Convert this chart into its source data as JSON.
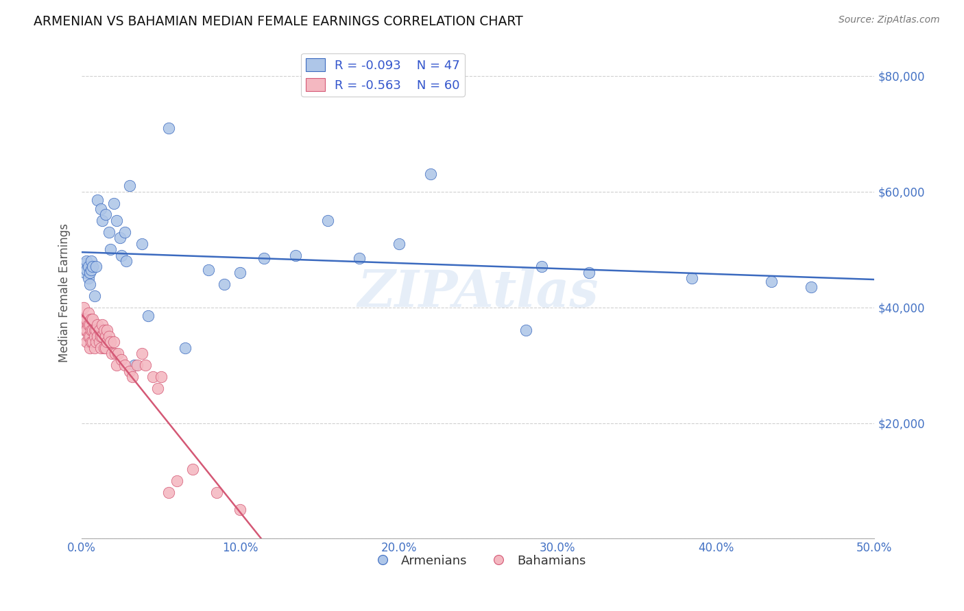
{
  "title": "ARMENIAN VS BAHAMIAN MEDIAN FEMALE EARNINGS CORRELATION CHART",
  "source": "Source: ZipAtlas.com",
  "ylabel": "Median Female Earnings",
  "xlim": [
    0,
    0.5
  ],
  "ylim": [
    0,
    85000
  ],
  "yticks": [
    0,
    20000,
    40000,
    60000,
    80000
  ],
  "ytick_labels": [
    "",
    "$20,000",
    "$40,000",
    "$60,000",
    "$80,000"
  ],
  "xticks": [
    0.0,
    0.1,
    0.2,
    0.3,
    0.4,
    0.5
  ],
  "xtick_labels": [
    "0.0%",
    "10.0%",
    "20.0%",
    "30.0%",
    "40.0%",
    "50.0%"
  ],
  "background_color": "#ffffff",
  "grid_color": "#d0d0d0",
  "watermark": "ZIPAtlas",
  "armenian_color": "#aec6e8",
  "bahamian_color": "#f4b8c1",
  "armenian_line_color": "#3b6abf",
  "bahamian_line_color": "#d45875",
  "legend_R_armenian": "-0.093",
  "legend_N_armenian": "47",
  "legend_R_bahamian": "-0.563",
  "legend_N_bahamian": "60",
  "armenian_x": [
    0.001,
    0.002,
    0.002,
    0.003,
    0.003,
    0.004,
    0.004,
    0.005,
    0.005,
    0.006,
    0.006,
    0.007,
    0.008,
    0.009,
    0.01,
    0.012,
    0.013,
    0.015,
    0.017,
    0.018,
    0.02,
    0.022,
    0.024,
    0.025,
    0.027,
    0.028,
    0.03,
    0.033,
    0.038,
    0.042,
    0.055,
    0.065,
    0.08,
    0.09,
    0.1,
    0.115,
    0.135,
    0.155,
    0.175,
    0.2,
    0.22,
    0.28,
    0.32,
    0.385,
    0.435,
    0.46,
    0.29
  ],
  "armenian_y": [
    47000,
    47500,
    46000,
    48000,
    46500,
    45000,
    47000,
    44000,
    46000,
    46500,
    48000,
    47000,
    42000,
    47000,
    58500,
    57000,
    55000,
    56000,
    53000,
    50000,
    58000,
    55000,
    52000,
    49000,
    53000,
    48000,
    61000,
    30000,
    51000,
    38500,
    71000,
    33000,
    46500,
    44000,
    46000,
    48500,
    49000,
    55000,
    48500,
    51000,
    63000,
    36000,
    46000,
    45000,
    44500,
    43500,
    47000
  ],
  "bahamian_x": [
    0.001,
    0.001,
    0.002,
    0.002,
    0.003,
    0.003,
    0.003,
    0.004,
    0.004,
    0.004,
    0.005,
    0.005,
    0.005,
    0.006,
    0.006,
    0.006,
    0.007,
    0.007,
    0.007,
    0.008,
    0.008,
    0.008,
    0.009,
    0.009,
    0.01,
    0.01,
    0.011,
    0.011,
    0.012,
    0.012,
    0.013,
    0.013,
    0.014,
    0.014,
    0.015,
    0.015,
    0.016,
    0.016,
    0.017,
    0.018,
    0.019,
    0.02,
    0.021,
    0.022,
    0.023,
    0.025,
    0.027,
    0.03,
    0.032,
    0.035,
    0.038,
    0.04,
    0.045,
    0.048,
    0.05,
    0.055,
    0.06,
    0.07,
    0.085,
    0.1
  ],
  "bahamian_y": [
    40000,
    37000,
    38000,
    36000,
    38000,
    36000,
    34000,
    39000,
    37000,
    35000,
    37000,
    35000,
    33000,
    38000,
    36000,
    34000,
    38000,
    36000,
    34000,
    36000,
    35000,
    33000,
    36000,
    34000,
    37000,
    35000,
    36000,
    34000,
    35000,
    33000,
    37000,
    35000,
    36000,
    33000,
    35000,
    33000,
    36000,
    34000,
    35000,
    34000,
    32000,
    34000,
    32000,
    30000,
    32000,
    31000,
    30000,
    29000,
    28000,
    30000,
    32000,
    30000,
    28000,
    26000,
    28000,
    8000,
    10000,
    12000,
    8000,
    5000
  ]
}
